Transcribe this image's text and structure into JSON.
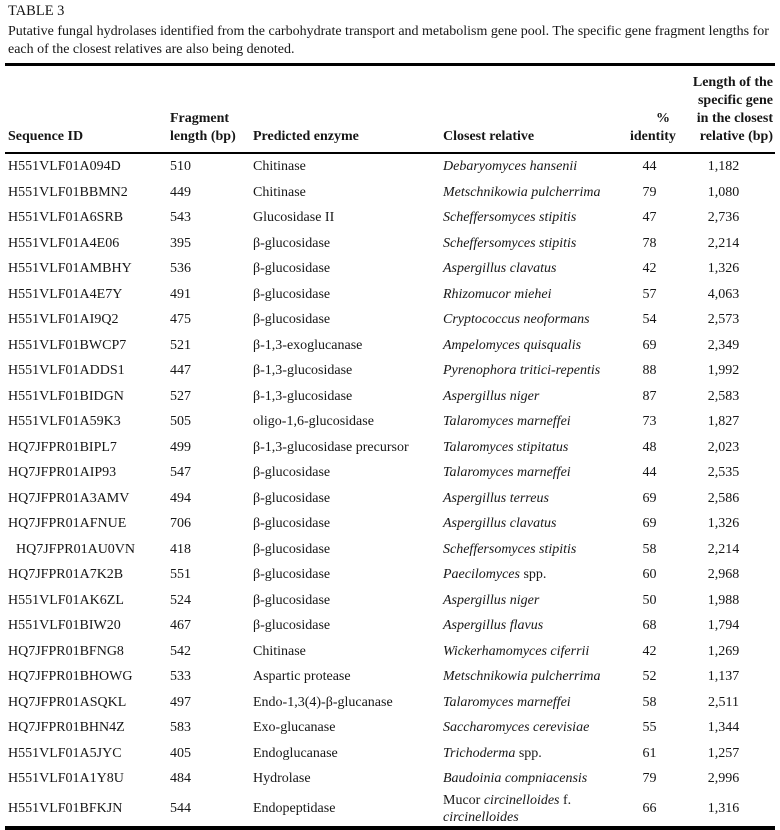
{
  "colors": {
    "background": "#ffffff",
    "text": "#161616",
    "rule": "#000000"
  },
  "caption": {
    "label": "TABLE 3",
    "text": "Putative fungal hydrolases identified from the carbohydrate transport and metabolism gene pool. The specific gene fragment lengths for each of the closest relatives are also being denoted."
  },
  "table": {
    "columns": [
      {
        "label": "Sequence ID"
      },
      {
        "label": "Fragment\nlength (bp)"
      },
      {
        "label": "Predicted enzyme"
      },
      {
        "label": "Closest relative"
      },
      {
        "label": "%\nidentity"
      },
      {
        "label": "Length of the\nspecific gene\nin the closest\nrelative (bp)"
      }
    ],
    "rows": [
      {
        "sequence_id": "H551VLF01A094D",
        "indent": false,
        "fragment_length_bp": "510",
        "predicted_enzyme": "Chitinase",
        "closest_relative": [
          {
            "t": "Debaryomyces hansenii",
            "i": true
          }
        ],
        "identity_pct": "44",
        "gene_length_bp": "1,182"
      },
      {
        "sequence_id": "H551VLF01BBMN2",
        "indent": false,
        "fragment_length_bp": "449",
        "predicted_enzyme": "Chitinase",
        "closest_relative": [
          {
            "t": "Metschnikowia pulcherrima",
            "i": true
          }
        ],
        "identity_pct": "79",
        "gene_length_bp": "1,080"
      },
      {
        "sequence_id": "H551VLF01A6SRB",
        "indent": false,
        "fragment_length_bp": "543",
        "predicted_enzyme": "Glucosidase II",
        "closest_relative": [
          {
            "t": "Scheffersomyces stipitis",
            "i": true
          }
        ],
        "identity_pct": "47",
        "gene_length_bp": "2,736"
      },
      {
        "sequence_id": "H551VLF01A4E06",
        "indent": false,
        "fragment_length_bp": "395",
        "predicted_enzyme": "β-glucosidase",
        "closest_relative": [
          {
            "t": "Scheffersomyces stipitis",
            "i": true
          }
        ],
        "identity_pct": "78",
        "gene_length_bp": "2,214"
      },
      {
        "sequence_id": "H551VLF01AMBHY",
        "indent": false,
        "fragment_length_bp": "536",
        "predicted_enzyme": "β-glucosidase",
        "closest_relative": [
          {
            "t": "Aspergillus clavatus",
            "i": true
          }
        ],
        "identity_pct": "42",
        "gene_length_bp": "1,326"
      },
      {
        "sequence_id": "H551VLF01A4E7Y",
        "indent": false,
        "fragment_length_bp": "491",
        "predicted_enzyme": "β-glucosidase",
        "closest_relative": [
          {
            "t": "Rhizomucor miehei",
            "i": true
          }
        ],
        "identity_pct": "57",
        "gene_length_bp": "4,063"
      },
      {
        "sequence_id": "H551VLF01AI9Q2",
        "indent": false,
        "fragment_length_bp": "475",
        "predicted_enzyme": "β-glucosidase",
        "closest_relative": [
          {
            "t": "Cryptococcus neoformans",
            "i": true
          }
        ],
        "identity_pct": "54",
        "gene_length_bp": "2,573"
      },
      {
        "sequence_id": "H551VLF01BWCP7",
        "indent": false,
        "fragment_length_bp": "521",
        "predicted_enzyme": "β-1,3-exoglucanase",
        "closest_relative": [
          {
            "t": "Ampelomyces quisqualis",
            "i": true
          }
        ],
        "identity_pct": "69",
        "gene_length_bp": "2,349"
      },
      {
        "sequence_id": "H551VLF01ADDS1",
        "indent": false,
        "fragment_length_bp": "447",
        "predicted_enzyme": "β-1,3-glucosidase",
        "closest_relative": [
          {
            "t": "Pyrenophora tritici-repentis",
            "i": true
          }
        ],
        "identity_pct": "88",
        "gene_length_bp": "1,992"
      },
      {
        "sequence_id": "H551VLF01BIDGN",
        "indent": false,
        "fragment_length_bp": "527",
        "predicted_enzyme": "β-1,3-glucosidase",
        "closest_relative": [
          {
            "t": "Aspergillus niger",
            "i": true
          }
        ],
        "identity_pct": "87",
        "gene_length_bp": "2,583"
      },
      {
        "sequence_id": "H551VLF01A59K3",
        "indent": false,
        "fragment_length_bp": "505",
        "predicted_enzyme": "oligo-1,6-glucosidase",
        "closest_relative": [
          {
            "t": "Talaromyces marneffei",
            "i": true
          }
        ],
        "identity_pct": "73",
        "gene_length_bp": "1,827"
      },
      {
        "sequence_id": "HQ7JFPR01BIPL7",
        "indent": false,
        "fragment_length_bp": "499",
        "predicted_enzyme": "β-1,3-glucosidase precursor",
        "closest_relative": [
          {
            "t": "Talaromyces stipitatus",
            "i": true
          }
        ],
        "identity_pct": "48",
        "gene_length_bp": "2,023"
      },
      {
        "sequence_id": "HQ7JFPR01AIP93",
        "indent": false,
        "fragment_length_bp": "547",
        "predicted_enzyme": "β-glucosidase",
        "closest_relative": [
          {
            "t": "Talaromyces marneffei",
            "i": true
          }
        ],
        "identity_pct": "44",
        "gene_length_bp": "2,535"
      },
      {
        "sequence_id": "HQ7JFPR01A3AMV",
        "indent": false,
        "fragment_length_bp": "494",
        "predicted_enzyme": "β-glucosidase",
        "closest_relative": [
          {
            "t": "Aspergillus terreus",
            "i": true
          }
        ],
        "identity_pct": "69",
        "gene_length_bp": "2,586"
      },
      {
        "sequence_id": "HQ7JFPR01AFNUE",
        "indent": false,
        "fragment_length_bp": "706",
        "predicted_enzyme": "β-glucosidase",
        "closest_relative": [
          {
            "t": "Aspergillus clavatus",
            "i": true
          }
        ],
        "identity_pct": "69",
        "gene_length_bp": "1,326"
      },
      {
        "sequence_id": "HQ7JFPR01AU0VN",
        "indent": true,
        "fragment_length_bp": "418",
        "predicted_enzyme": "β-glucosidase",
        "closest_relative": [
          {
            "t": "Scheffersomyces stipitis",
            "i": true
          }
        ],
        "identity_pct": "58",
        "gene_length_bp": "2,214"
      },
      {
        "sequence_id": "HQ7JFPR01A7K2B",
        "indent": false,
        "fragment_length_bp": "551",
        "predicted_enzyme": "β-glucosidase",
        "closest_relative": [
          {
            "t": "Paecilomyces",
            "i": true
          },
          {
            "t": " spp.",
            "i": false
          }
        ],
        "identity_pct": "60",
        "gene_length_bp": "2,968"
      },
      {
        "sequence_id": "H551VLF01AK6ZL",
        "indent": false,
        "fragment_length_bp": "524",
        "predicted_enzyme": "β-glucosidase",
        "closest_relative": [
          {
            "t": "Aspergillus niger",
            "i": true
          }
        ],
        "identity_pct": "50",
        "gene_length_bp": "1,988"
      },
      {
        "sequence_id": "H551VLF01BIW20",
        "indent": false,
        "fragment_length_bp": "467",
        "predicted_enzyme": "β-glucosidase",
        "closest_relative": [
          {
            "t": "Aspergillus flavus",
            "i": true
          }
        ],
        "identity_pct": "68",
        "gene_length_bp": "1,794"
      },
      {
        "sequence_id": "HQ7JFPR01BFNG8",
        "indent": false,
        "fragment_length_bp": "542",
        "predicted_enzyme": "Chitinase",
        "closest_relative": [
          {
            "t": "Wickerhamomyces ciferrii",
            "i": true
          }
        ],
        "identity_pct": "42",
        "gene_length_bp": "1,269"
      },
      {
        "sequence_id": "HQ7JFPR01BHOWG",
        "indent": false,
        "fragment_length_bp": "533",
        "predicted_enzyme": "Aspartic protease",
        "closest_relative": [
          {
            "t": "Metschnikowia pulcherrima",
            "i": true
          }
        ],
        "identity_pct": "52",
        "gene_length_bp": "1,137"
      },
      {
        "sequence_id": "HQ7JFPR01ASQKL",
        "indent": false,
        "fragment_length_bp": "497",
        "predicted_enzyme": "Endo-1,3(4)-β-glucanase",
        "closest_relative": [
          {
            "t": "Talaromyces marneffei",
            "i": true
          }
        ],
        "identity_pct": "58",
        "gene_length_bp": "2,511"
      },
      {
        "sequence_id": "HQ7JFPR01BHN4Z",
        "indent": false,
        "fragment_length_bp": "583",
        "predicted_enzyme": "Exo-glucanase",
        "closest_relative": [
          {
            "t": "Saccharomyces cerevisiae",
            "i": true
          }
        ],
        "identity_pct": "55",
        "gene_length_bp": "1,344"
      },
      {
        "sequence_id": "H551VLF01A5JYC",
        "indent": false,
        "fragment_length_bp": "405",
        "predicted_enzyme": "Endoglucanase",
        "closest_relative": [
          {
            "t": "Trichoderma",
            "i": true
          },
          {
            "t": " spp.",
            "i": false
          }
        ],
        "identity_pct": "61",
        "gene_length_bp": "1,257"
      },
      {
        "sequence_id": "H551VLF01A1Y8U",
        "indent": false,
        "fragment_length_bp": "484",
        "predicted_enzyme": "Hydrolase",
        "closest_relative": [
          {
            "t": "Baudoinia compniacensis",
            "i": true
          }
        ],
        "identity_pct": "79",
        "gene_length_bp": "2,996"
      },
      {
        "sequence_id": "H551VLF01BFKJN",
        "indent": false,
        "fragment_length_bp": "544",
        "predicted_enzyme": "Endopeptidase",
        "closest_relative": [
          {
            "t": "Mucor ",
            "i": false
          },
          {
            "t": "circinelloides",
            "i": true
          },
          {
            "t": " f. ",
            "i": false
          },
          {
            "t": "circinelloides",
            "i": true
          }
        ],
        "identity_pct": "66",
        "gene_length_bp": "1,316"
      }
    ]
  }
}
